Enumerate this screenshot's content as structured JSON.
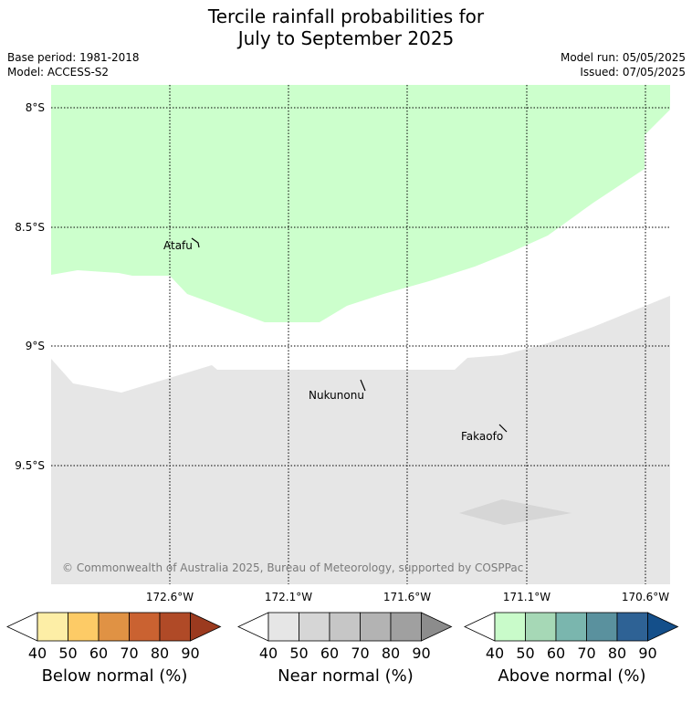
{
  "title_line1": "Tercile rainfall probabilities for",
  "title_line2": "July to September 2025",
  "base_period": "Base period: 1981-2018",
  "model": "Model: ACCESS-S2",
  "model_run": "Model run: 05/05/2025",
  "issued": "Issued: 07/05/2025",
  "copyright": "© Commonwealth of Australia 2025, Bureau of Meteorology, supported by COSPPac",
  "lat_labels": [
    "8°S",
    "8.5°S",
    "9°S",
    "9.5°S"
  ],
  "lon_labels": [
    "172.6°W",
    "172.1°W",
    "171.6°W",
    "171.1°W",
    "170.6°W"
  ],
  "places": [
    {
      "name": "Atafu"
    },
    {
      "name": "Nukunonu"
    },
    {
      "name": "Fakaofo"
    }
  ],
  "colorbars": [
    {
      "label": "Below normal (%)",
      "ticks": [
        "40",
        "50",
        "60",
        "70",
        "80",
        "90"
      ],
      "colors": [
        "#ffffff",
        "#fdeea6",
        "#fdcb66",
        "#e09244",
        "#ca6231",
        "#b04a27",
        "#9b3a1f"
      ]
    },
    {
      "label": "Near normal (%)",
      "ticks": [
        "40",
        "50",
        "60",
        "70",
        "80",
        "90"
      ],
      "colors": [
        "#ffffff",
        "#e6e6e6",
        "#d6d6d6",
        "#c6c6c6",
        "#b3b3b3",
        "#a0a0a0",
        "#8c8c8c"
      ]
    },
    {
      "label": "Above normal (%)",
      "ticks": [
        "40",
        "50",
        "60",
        "70",
        "80",
        "90"
      ],
      "colors": [
        "#ffffff",
        "#c9fbca",
        "#a6d8b6",
        "#7ab6ae",
        "#5a919e",
        "#2e6295",
        "#144f8a"
      ]
    }
  ],
  "colors": {
    "above_normal_region": "#ccffcc",
    "near_normal_region": "#e6e6e6",
    "near_normal_region_dark": "#d6d6d6"
  }
}
